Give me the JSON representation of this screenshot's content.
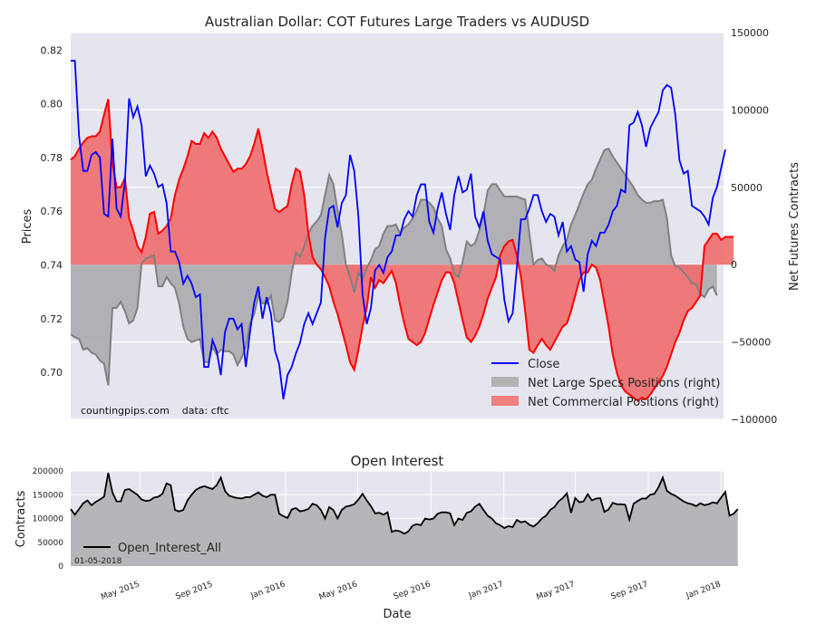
{
  "chart_data": [
    {
      "type": "line",
      "title": "Australian Dollar: COT Futures Large Traders vs AUDUSD",
      "ylabel": "Prices",
      "y2label": "Net Futures Contracts",
      "ylim": [
        0.6825,
        0.8265
      ],
      "y2lim": [
        -100000,
        150000
      ],
      "y_ticks": [
        "0.70",
        "0.72",
        "0.74",
        "0.76",
        "0.78",
        "0.80",
        "0.82"
      ],
      "y2_ticks": [
        "−100000",
        "−50000",
        "0",
        "50000",
        "100000",
        "150000"
      ],
      "grid": true,
      "legend_position": "lower-right",
      "annotation": "countingpips.com    data: cftc",
      "series": [
        {
          "name": "Close",
          "axis": "left",
          "color": "#0000ff",
          "values": [
            0.816,
            0.816,
            0.788,
            0.775,
            0.775,
            0.781,
            0.782,
            0.78,
            0.759,
            0.758,
            0.787,
            0.761,
            0.758,
            0.771,
            0.802,
            0.795,
            0.799,
            0.792,
            0.773,
            0.777,
            0.774,
            0.769,
            0.77,
            0.763,
            0.745,
            0.745,
            0.741,
            0.733,
            0.736,
            0.733,
            0.728,
            0.729,
            0.702,
            0.702,
            0.712,
            0.708,
            0.699,
            0.715,
            0.72,
            0.72,
            0.716,
            0.718,
            0.702,
            0.715,
            0.726,
            0.732,
            0.72,
            0.728,
            0.722,
            0.708,
            0.703,
            0.69,
            0.699,
            0.702,
            0.707,
            0.711,
            0.718,
            0.722,
            0.718,
            0.722,
            0.726,
            0.75,
            0.761,
            0.762,
            0.754,
            0.763,
            0.766,
            0.781,
            0.775,
            0.758,
            0.729,
            0.718,
            0.724,
            0.738,
            0.74,
            0.737,
            0.743,
            0.745,
            0.751,
            0.751,
            0.757,
            0.76,
            0.758,
            0.766,
            0.77,
            0.77,
            0.756,
            0.752,
            0.761,
            0.767,
            0.759,
            0.753,
            0.766,
            0.773,
            0.767,
            0.768,
            0.774,
            0.758,
            0.754,
            0.76,
            0.749,
            0.744,
            0.743,
            0.742,
            0.727,
            0.719,
            0.722,
            0.739,
            0.757,
            0.757,
            0.761,
            0.766,
            0.766,
            0.76,
            0.756,
            0.759,
            0.758,
            0.751,
            0.756,
            0.745,
            0.747,
            0.742,
            0.741,
            0.73,
            0.744,
            0.749,
            0.747,
            0.752,
            0.752,
            0.755,
            0.76,
            0.762,
            0.768,
            0.767,
            0.792,
            0.793,
            0.797,
            0.792,
            0.784,
            0.791,
            0.794,
            0.797,
            0.805,
            0.807,
            0.806,
            0.796,
            0.779,
            0.774,
            0.775,
            0.762,
            0.761,
            0.76,
            0.758,
            0.755,
            0.765,
            0.769,
            0.776,
            0.783
          ],
          "x_start": "2015-01-05",
          "x_step_days": 7
        },
        {
          "name": "Net Large Specs Positions (right)",
          "axis": "right",
          "color": "#a9a9a9",
          "x_start": "2015-01-05",
          "x_step_days": 7,
          "values": [
            -45000,
            -47000,
            -48000,
            -55000,
            -54000,
            -57000,
            -58000,
            -62000,
            -64000,
            -78000,
            -28000,
            -28000,
            -24000,
            -30000,
            -38000,
            -36000,
            -28000,
            1000,
            4000,
            5000,
            6000,
            -14000,
            -14000,
            -8000,
            -12000,
            -15000,
            -25000,
            -40000,
            -48000,
            -50000,
            -49000,
            -48000,
            -63000,
            -63000,
            -53000,
            -58000,
            -55000,
            -56000,
            -56000,
            -58000,
            -65000,
            -60000,
            -53000,
            -38000,
            -32000,
            -20000,
            -25000,
            -25000,
            -20000,
            -36000,
            -37000,
            -34000,
            -24000,
            -5000,
            8000,
            5000,
            12000,
            20000,
            25000,
            28000,
            32000,
            45000,
            58000,
            52000,
            35000,
            20000,
            0,
            -8000,
            -18000,
            -5000,
            -10000,
            -2000,
            3000,
            10000,
            12000,
            20000,
            25000,
            25000,
            26000,
            20000,
            24000,
            26000,
            30000,
            35000,
            42000,
            42000,
            40000,
            37000,
            30000,
            25000,
            10000,
            4000,
            -6000,
            -8000,
            2000,
            15000,
            12000,
            14000,
            22000,
            32000,
            48000,
            52000,
            52000,
            48000,
            44000,
            44000,
            44000,
            44000,
            43000,
            42000,
            20000,
            0,
            3000,
            4000,
            0,
            -1000,
            -4000,
            6000,
            12000,
            16000,
            26000,
            32000,
            39000,
            46000,
            52000,
            55000,
            62000,
            68000,
            74000,
            75000,
            70000,
            66000,
            62000,
            58000,
            54000,
            50000,
            45000,
            42000,
            40000,
            40000,
            41000,
            41000,
            42000,
            30000,
            6000,
            -1000,
            -2000,
            -5000,
            -8000,
            -12000,
            -13000,
            -19000,
            -21000,
            -16000,
            -14000,
            -20000
          ]
        },
        {
          "name": "Net Commercial Positions (right)",
          "axis": "right",
          "color": "#f08080",
          "x_start": "2015-01-05",
          "x_step_days": 7,
          "values": [
            68000,
            70000,
            75000,
            79000,
            82000,
            83000,
            83000,
            86000,
            97000,
            107000,
            66000,
            50000,
            50000,
            56000,
            30000,
            22000,
            12000,
            8000,
            18000,
            33000,
            34000,
            20000,
            22000,
            25000,
            30000,
            45000,
            55000,
            62000,
            70000,
            80000,
            78000,
            78000,
            85000,
            82000,
            86000,
            82000,
            75000,
            70000,
            65000,
            60000,
            62000,
            62000,
            65000,
            70000,
            78000,
            88000,
            75000,
            60000,
            48000,
            36000,
            34000,
            36000,
            38000,
            52000,
            62000,
            60000,
            45000,
            20000,
            5000,
            0,
            -3000,
            -8000,
            -14000,
            -24000,
            -32000,
            -42000,
            -52000,
            -63000,
            -68000,
            -55000,
            -40000,
            -28000,
            -8000,
            -15000,
            -10000,
            -12000,
            -8000,
            -4000,
            -12000,
            -26000,
            -38000,
            -48000,
            -50000,
            -52000,
            -50000,
            -44000,
            -35000,
            -26000,
            -18000,
            -10000,
            -5000,
            -5000,
            -12000,
            -24000,
            -36000,
            -47000,
            -50000,
            -46000,
            -40000,
            -32000,
            -22000,
            -15000,
            -8000,
            6000,
            12000,
            15000,
            16000,
            6000,
            -8000,
            -30000,
            -55000,
            -57000,
            -52000,
            -48000,
            -52000,
            -55000,
            -50000,
            -45000,
            -40000,
            -38000,
            -30000,
            -20000,
            -10000,
            -5000,
            -5000,
            0,
            -2000,
            -10000,
            -25000,
            -40000,
            -58000,
            -70000,
            -78000,
            -82000,
            -84000,
            -86000,
            -88000,
            -86000,
            -87000,
            -84000,
            -80000,
            -76000,
            -72000,
            -66000,
            -58000,
            -50000,
            -44000,
            -36000,
            -30000,
            -28000,
            -24000,
            -20000,
            12000,
            16000,
            20000,
            20000,
            16000,
            18000,
            18000,
            18000
          ]
        }
      ]
    },
    {
      "type": "area",
      "title": "Open Interest",
      "xlabel": "Date",
      "ylabel": "Contracts",
      "ylim": [
        0,
        200000
      ],
      "y_ticks": [
        "0",
        "50000",
        "100000",
        "150000",
        "200000"
      ],
      "x_ticks": [
        "May 2015",
        "Sep 2015",
        "Jan 2016",
        "May 2016",
        "Sep 2016",
        "Jan 2017",
        "May 2017",
        "Sep 2017",
        "Jan 2018"
      ],
      "grid": true,
      "legend_position": "lower-left",
      "annotation": "01-05-2018",
      "series": [
        {
          "name": "Open_Interest_All",
          "color": "#000000",
          "fill": "#b6b6ba",
          "x_start": "2015-01-05",
          "x_step_days": 7,
          "values": [
            120000,
            108000,
            120000,
            132000,
            138000,
            128000,
            135000,
            140000,
            146000,
            196000,
            155000,
            136000,
            136000,
            160000,
            162000,
            156000,
            150000,
            140000,
            137000,
            138000,
            144000,
            146000,
            152000,
            174000,
            170000,
            118000,
            115000,
            118000,
            138000,
            150000,
            160000,
            165000,
            168000,
            165000,
            162000,
            170000,
            186000,
            158000,
            148000,
            145000,
            143000,
            142000,
            145000,
            145000,
            150000,
            155000,
            148000,
            145000,
            150000,
            150000,
            110000,
            105000,
            101000,
            119000,
            122000,
            115000,
            117000,
            120000,
            131000,
            128000,
            118000,
            100000,
            124000,
            118000,
            100000,
            118000,
            125000,
            127000,
            130000,
            140000,
            152000,
            138000,
            126000,
            111000,
            112000,
            108000,
            113000,
            72000,
            75000,
            73000,
            68000,
            73000,
            85000,
            88000,
            86000,
            100000,
            98000,
            100000,
            110000,
            113000,
            113000,
            111000,
            86000,
            100000,
            97000,
            112000,
            115000,
            125000,
            131000,
            118000,
            106000,
            100000,
            90000,
            86000,
            80000,
            84000,
            82000,
            97000,
            92000,
            94000,
            87000,
            83000,
            90000,
            100000,
            106000,
            118000,
            124000,
            136000,
            143000,
            153000,
            112000,
            143000,
            134000,
            136000,
            151000,
            138000,
            142000,
            143000,
            114000,
            119000,
            133000,
            130000,
            130000,
            129000,
            98000,
            131000,
            137000,
            142000,
            142000,
            150000,
            152000,
            166000,
            186000,
            158000,
            152000,
            148000,
            142000,
            136000,
            132000,
            130000,
            126000,
            132000,
            128000,
            130000,
            134000,
            132000,
            144000,
            156000,
            106000,
            110000,
            120000
          ]
        }
      ]
    }
  ]
}
